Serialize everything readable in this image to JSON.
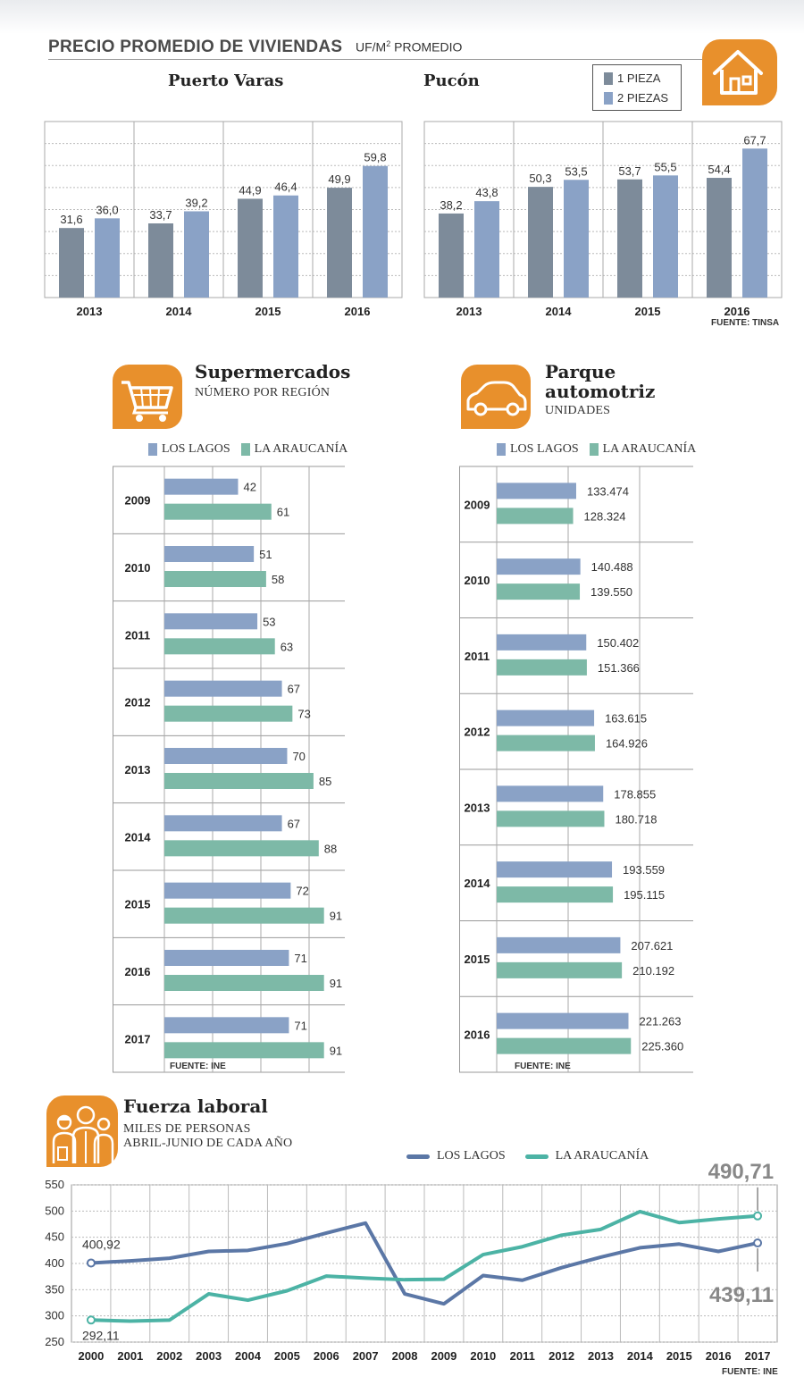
{
  "colors": {
    "los_lagos": "#8aa2c6",
    "la_araucania": "#7db9a7",
    "pieza1": "#7d8b9a",
    "pieza2": "#8aa2c6",
    "line_lagos": "#5b77a6",
    "line_araucania": "#4cb3a5",
    "icon_orange": "#e8902c"
  },
  "header": {
    "title": "PRECIO PROMEDIO DE VIVIENDAS",
    "unit_main": "UF/M",
    "unit_sup": "2",
    "unit_rest": " PROMEDIO",
    "icon": "house-icon"
  },
  "vivienda": {
    "legend": [
      "1 PIEZA",
      "2 PIEZAS"
    ],
    "fuente": "FUENTE: TINSA"
  },
  "super": {
    "title": "Supermercados",
    "subtitle": "NÚMERO POR REGIÓN",
    "icon": "cart-icon",
    "legend": [
      "LOS LAGOS",
      "LA ARAUCANÍA"
    ],
    "fuente": "FUENTE: INE"
  },
  "auto": {
    "title_line1": "Parque",
    "title_line2": "automotriz",
    "subtitle": "UNIDADES",
    "icon": "car-icon",
    "legend": [
      "LOS LAGOS",
      "LA ARAUCANÍA"
    ],
    "fuente": "FUENTE: INE"
  },
  "fuerza": {
    "title": "Fuerza laboral",
    "subtitle_line1": "MILES DE PERSONAS",
    "subtitle_line2": "ABRIL-JUNIO DE CADA AÑO",
    "icon": "workers-icon",
    "legend": [
      "LOS LAGOS",
      "LA ARAUCANÍA"
    ],
    "fuente": "FUENTE: INE"
  },
  "chart_data": [
    {
      "type": "bar",
      "title": "Puerto Varas",
      "categories": [
        "2013",
        "2014",
        "2015",
        "2016"
      ],
      "series": [
        {
          "name": "1 PIEZA",
          "values": [
            31.6,
            33.7,
            44.9,
            49.9
          ],
          "labels": [
            "31,6",
            "33,7",
            "44,9",
            "49,9"
          ]
        },
        {
          "name": "2 PIEZAS",
          "values": [
            36.0,
            39.2,
            46.4,
            59.8
          ],
          "labels": [
            "36,0",
            "39,2",
            "46,4",
            "59,8"
          ]
        }
      ],
      "ylim": [
        0,
        80
      ]
    },
    {
      "type": "bar",
      "title": "Pucón",
      "categories": [
        "2013",
        "2014",
        "2015",
        "2016"
      ],
      "series": [
        {
          "name": "1 PIEZA",
          "values": [
            38.2,
            50.3,
            53.7,
            54.4
          ],
          "labels": [
            "38,2",
            "50,3",
            "53,7",
            "54,4"
          ]
        },
        {
          "name": "2 PIEZAS",
          "values": [
            43.8,
            53.5,
            55.5,
            67.7
          ],
          "labels": [
            "43,8",
            "53,5",
            "55,5",
            "67,7"
          ]
        }
      ],
      "ylim": [
        0,
        80
      ]
    },
    {
      "type": "bar",
      "orientation": "horizontal",
      "title": "Supermercados",
      "categories": [
        "2009",
        "2010",
        "2011",
        "2012",
        "2013",
        "2014",
        "2015",
        "2016",
        "2017"
      ],
      "series": [
        {
          "name": "LOS LAGOS",
          "values": [
            42,
            51,
            53,
            67,
            70,
            67,
            72,
            71,
            71
          ],
          "labels": [
            "42",
            "51",
            "53",
            "67",
            "70",
            "67",
            "72",
            "71",
            "71"
          ]
        },
        {
          "name": "LA ARAUCANÍA",
          "values": [
            61,
            58,
            63,
            73,
            85,
            88,
            91,
            91,
            91
          ],
          "labels": [
            "61",
            "58",
            "63",
            "73",
            "85",
            "88",
            "91",
            "91",
            "91"
          ]
        }
      ],
      "xlim": [
        0,
        110
      ]
    },
    {
      "type": "bar",
      "orientation": "horizontal",
      "title": "Parque automotriz",
      "categories": [
        "2009",
        "2010",
        "2011",
        "2012",
        "2013",
        "2014",
        "2015",
        "2016"
      ],
      "series": [
        {
          "name": "LOS LAGOS",
          "values": [
            133474,
            140488,
            150402,
            163615,
            178855,
            193559,
            207621,
            221263
          ],
          "labels": [
            "133.474",
            "140.488",
            "150.402",
            "163.615",
            "178.855",
            "193.559",
            "207.621",
            "221.263"
          ]
        },
        {
          "name": "LA ARAUCANÍA",
          "values": [
            128324,
            139550,
            151366,
            164926,
            180718,
            195115,
            210192,
            225360
          ],
          "labels": [
            "128.324",
            "139.550",
            "151.366",
            "164.926",
            "180.718",
            "195.115",
            "210.192",
            "225.360"
          ]
        }
      ],
      "xlim": [
        0,
        330000
      ]
    },
    {
      "type": "line",
      "title": "Fuerza laboral",
      "x": [
        "2000",
        "2001",
        "2002",
        "2003",
        "2004",
        "2005",
        "2006",
        "2007",
        "2008",
        "2009",
        "2010",
        "2011",
        "2012",
        "2013",
        "2014",
        "2015",
        "2016",
        "2017"
      ],
      "series": [
        {
          "name": "LOS LAGOS",
          "values": [
            400.92,
            405,
            410,
            423,
            425,
            438,
            458,
            477,
            342,
            323,
            377,
            368,
            392,
            412,
            430,
            437,
            423,
            439.11
          ]
        },
        {
          "name": "LA ARAUCANÍA",
          "values": [
            292.11,
            290,
            292,
            342,
            330,
            348,
            376,
            372,
            369,
            370,
            417,
            432,
            454,
            465,
            499,
            478,
            485,
            490.71
          ]
        }
      ],
      "ylim": [
        250,
        550
      ],
      "yticks": [
        "550",
        "500",
        "450",
        "400",
        "350",
        "300",
        "250"
      ],
      "annotations": {
        "lagos_start": "400,92",
        "arau_start": "292,11",
        "arau_end": "490,71",
        "lagos_end": "439,11"
      }
    }
  ]
}
